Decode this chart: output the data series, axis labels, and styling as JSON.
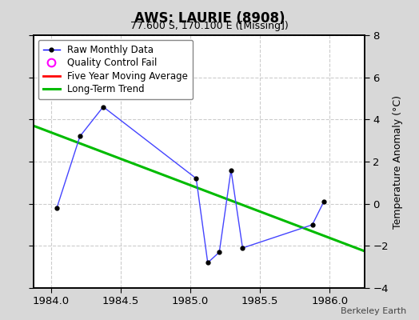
{
  "title": "AWS: LAURIE (8908)",
  "subtitle": "77.600 S, 170.100 E ([Missing])",
  "ylabel": "Temperature Anomaly (°C)",
  "watermark": "Berkeley Earth",
  "xlim": [
    1983.875,
    1986.25
  ],
  "ylim": [
    -4,
    8
  ],
  "yticks": [
    -4,
    -2,
    0,
    2,
    4,
    6,
    8
  ],
  "xticks": [
    1984,
    1984.5,
    1985,
    1985.5,
    1986
  ],
  "raw_x": [
    1984.042,
    1984.208,
    1984.375,
    1985.042,
    1985.125,
    1985.208,
    1985.292,
    1985.375,
    1985.875,
    1985.958
  ],
  "raw_y": [
    -0.2,
    3.2,
    4.6,
    1.2,
    -2.8,
    -2.3,
    1.6,
    -2.1,
    -1.0,
    0.1
  ],
  "trend_x": [
    1983.875,
    1986.25
  ],
  "trend_y": [
    3.7,
    -2.25
  ],
  "raw_line_color": "#4444ff",
  "raw_marker_color": "#000000",
  "trend_color": "#00bb00",
  "moving_avg_color": "#ff0000",
  "background_color": "#d8d8d8",
  "plot_background": "#ffffff",
  "grid_color": "#cccccc",
  "legend_labels": [
    "Raw Monthly Data",
    "Quality Control Fail",
    "Five Year Moving Average",
    "Long-Term Trend"
  ],
  "legend_line_color": "#0000ff",
  "legend_qc_color": "#ff00ff",
  "legend_ma_color": "#ff0000",
  "legend_trend_color": "#00bb00"
}
